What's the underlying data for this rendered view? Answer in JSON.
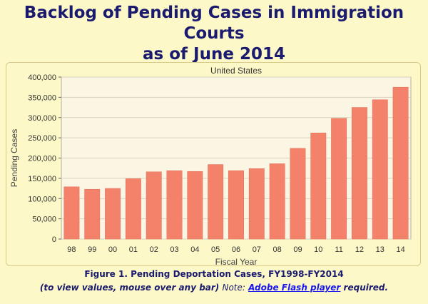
{
  "header": {
    "title_line1": "Backlog of Pending Cases in Immigration Courts",
    "title_line2": "as of June 2014"
  },
  "caption": {
    "figure_label": "Figure 1. Pending Deportation Cases, FY1998-FY2014",
    "instruction": "(to view values, mouse over any bar)",
    "note_label": "Note:",
    "link_text": "Adobe Flash player",
    "required_text": "required."
  },
  "colors": {
    "bar": "#f4826a",
    "bar_edge": "#e06a54",
    "plot_background": "#fbf6e4",
    "grid": "#d9d2bf",
    "title": "#1a1a6e",
    "link": "#1a1aee"
  },
  "chart_data": {
    "type": "bar",
    "title": "United States",
    "xlabel": "Fiscal Year",
    "ylabel": "Pending Cases",
    "categories": [
      "98",
      "99",
      "00",
      "01",
      "02",
      "03",
      "04",
      "05",
      "06",
      "07",
      "08",
      "09",
      "10",
      "11",
      "12",
      "13",
      "14"
    ],
    "values": [
      129000,
      123000,
      125000,
      149000,
      166000,
      169000,
      167000,
      184000,
      169000,
      174000,
      186000,
      224000,
      262000,
      298000,
      325000,
      344000,
      375000
    ],
    "ylim": [
      0,
      400000
    ],
    "yticks": [
      "0",
      "50,000",
      "100,000",
      "150,000",
      "200,000",
      "250,000",
      "300,000",
      "350,000",
      "400,000"
    ],
    "ytick_values": [
      0,
      50000,
      100000,
      150000,
      200000,
      250000,
      300000,
      350000,
      400000
    ],
    "grid": true,
    "legend": "none"
  }
}
